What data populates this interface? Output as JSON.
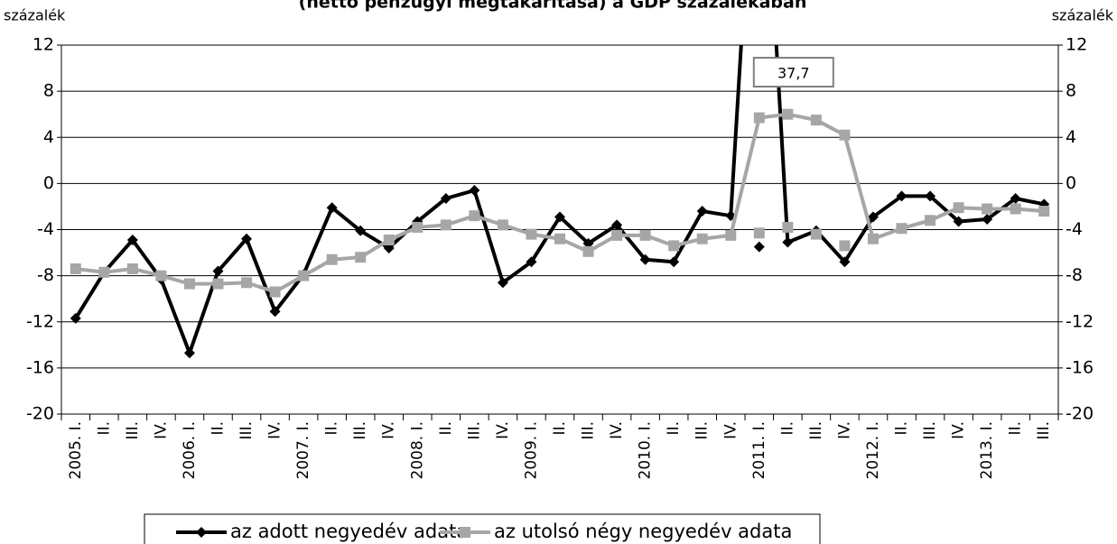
{
  "chart_data": {
    "type": "line",
    "title": "(nettó pénzügyi megtakarítása) a GDP százalékában",
    "ylabel": "százalék",
    "y2label": "százalék",
    "categories": [
      "2005. I.",
      "II.",
      "III.",
      "IV.",
      "2006. I.",
      "II.",
      "III.",
      "IV.",
      "2007. I.",
      "II.",
      "III.",
      "IV.",
      "2008. I.",
      "II.",
      "III.",
      "IV.",
      "2009. I.",
      "II.",
      "III.",
      "IV.",
      "2010. I.",
      "II.",
      "III.",
      "IV.",
      "2011. I.",
      "II.",
      "III.",
      "IV.",
      "2012. I.",
      "II.",
      "III.",
      "IV.",
      "2013. I.",
      "II.",
      "III."
    ],
    "series": [
      {
        "name": "az adott negyedév adata",
        "color": "#000000",
        "marker": "diamond",
        "line": true,
        "values": [
          -11.7,
          -7.7,
          -4.9,
          -8.3,
          -14.7,
          -7.6,
          -4.8,
          -11.1,
          -7.9,
          -2.1,
          -4.1,
          -5.6,
          -3.3,
          -1.3,
          -0.6,
          -8.6,
          -6.8,
          -2.9,
          -5.2,
          -3.6,
          -6.6,
          -6.8,
          -2.4,
          -2.8,
          37.7,
          -5.1,
          -4.1,
          -6.8,
          -2.9,
          -1.1,
          -1.1,
          -3.3,
          -3.1,
          -1.3,
          -1.8
        ],
        "value_labels": [
          null,
          null,
          null,
          null,
          null,
          null,
          null,
          null,
          null,
          null,
          null,
          null,
          null,
          null,
          null,
          null,
          null,
          null,
          null,
          null,
          null,
          null,
          null,
          null,
          "37,7",
          null,
          null,
          null,
          null,
          null,
          null,
          null,
          null,
          null,
          null
        ]
      },
      {
        "name": "az utolsó négy negyedév adata",
        "color": "#a6a6a6",
        "marker": "square",
        "line": true,
        "values": [
          -7.4,
          -7.7,
          -7.4,
          -8.0,
          -8.7,
          -8.7,
          -8.6,
          -9.4,
          -8.0,
          -6.6,
          -6.4,
          -4.9,
          -3.8,
          -3.6,
          -2.8,
          -3.6,
          -4.4,
          -4.8,
          -5.9,
          -4.5,
          -4.5,
          -5.4,
          -4.8,
          -4.5,
          5.7,
          6.0,
          5.5,
          4.2,
          -4.8,
          -3.9,
          -3.2,
          -2.1,
          -2.2,
          -2.2,
          -2.4
        ]
      },
      {
        "color": "#000000",
        "marker": "diamond",
        "line": false,
        "values": [
          null,
          null,
          null,
          null,
          null,
          null,
          null,
          null,
          null,
          null,
          null,
          null,
          null,
          null,
          null,
          null,
          null,
          null,
          null,
          null,
          null,
          null,
          null,
          null,
          -5.5,
          null,
          null,
          null,
          null,
          null,
          null,
          null,
          null,
          null,
          null
        ]
      },
      {
        "color": "#a6a6a6",
        "marker": "square",
        "line": false,
        "values": [
          null,
          null,
          null,
          null,
          null,
          null,
          null,
          null,
          null,
          null,
          null,
          null,
          null,
          null,
          null,
          null,
          null,
          null,
          null,
          null,
          null,
          null,
          null,
          null,
          -4.3,
          -3.8,
          -4.4,
          -5.4,
          null,
          null,
          null,
          null,
          null,
          null,
          null
        ]
      }
    ],
    "ylim": [
      -20,
      12
    ],
    "yticks": [
      -20,
      -16,
      -12,
      -8,
      -4,
      0,
      4,
      8,
      12
    ],
    "y2lim": [
      -20,
      12
    ],
    "y2ticks": [
      -20,
      -16,
      -12,
      -8,
      -4,
      0,
      4,
      8,
      12
    ],
    "grid": true,
    "legend": "bottom"
  }
}
